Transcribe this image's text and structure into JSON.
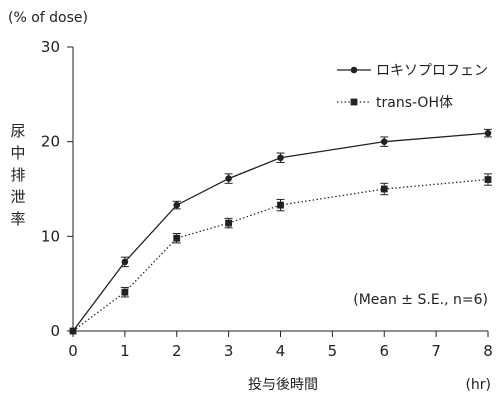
{
  "chart_data": {
    "type": "line",
    "unit_label": "(% of dose)",
    "ylabel": "尿中排泄率",
    "xlabel": "投与後時間",
    "x_unit": "(hr)",
    "x_ticks": [
      0,
      1,
      2,
      3,
      4,
      5,
      6,
      7,
      8
    ],
    "y_ticks": [
      0,
      10,
      20,
      30
    ],
    "xlim": [
      0,
      8
    ],
    "ylim": [
      0,
      30
    ],
    "grid": false,
    "legend_position": "top-right",
    "annotation": "(Mean ± S.E., n=6)",
    "series": [
      {
        "name": "ロキソプロフェン",
        "marker": "circle",
        "line_style": "solid",
        "color": "#222222",
        "x": [
          0,
          1,
          2,
          3,
          4,
          6,
          8
        ],
        "y": [
          0,
          7.3,
          13.3,
          16.1,
          18.3,
          20.0,
          20.9
        ],
        "err": [
          0,
          0.5,
          0.4,
          0.5,
          0.5,
          0.5,
          0.4
        ]
      },
      {
        "name": "trans-OH体",
        "marker": "square",
        "line_style": "dotted",
        "color": "#222222",
        "x": [
          0,
          1,
          2,
          3,
          4,
          6,
          8
        ],
        "y": [
          0,
          4.1,
          9.8,
          11.4,
          13.3,
          15.0,
          16.0
        ],
        "err": [
          0,
          0.5,
          0.5,
          0.5,
          0.6,
          0.6,
          0.6
        ]
      }
    ]
  }
}
